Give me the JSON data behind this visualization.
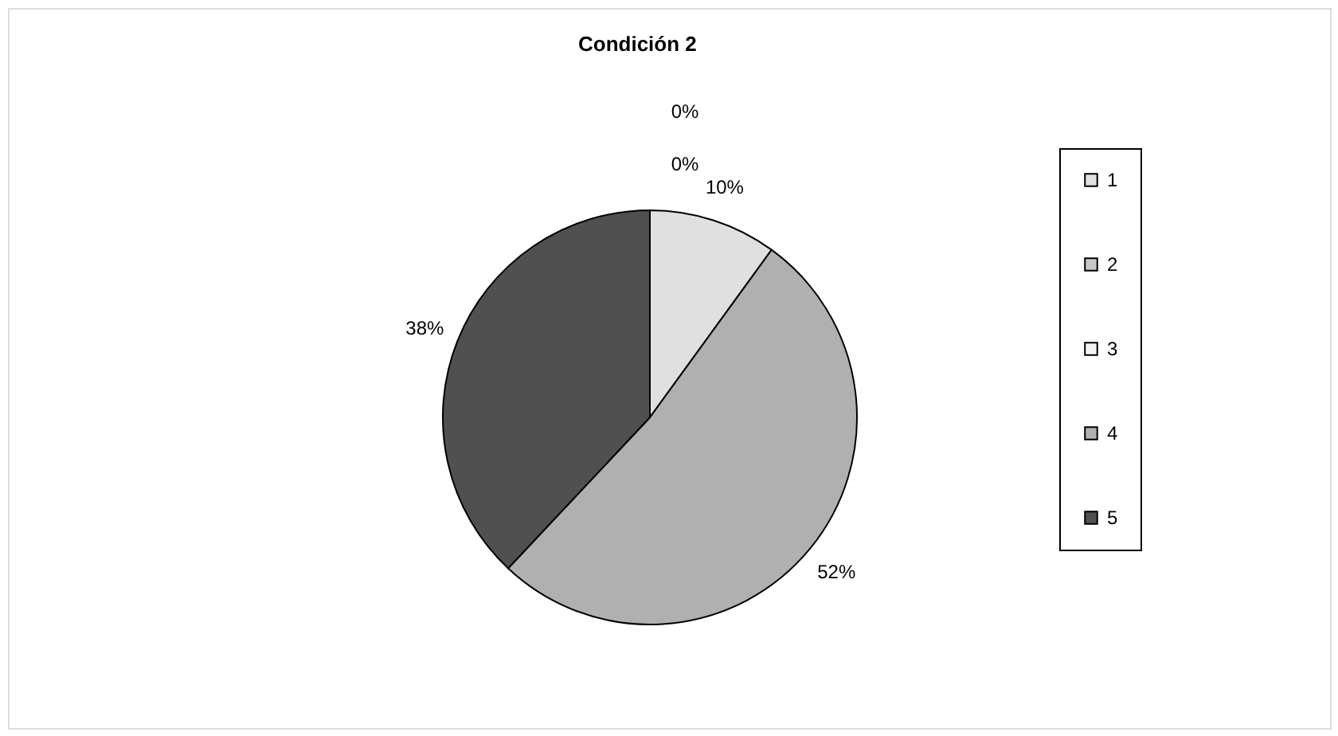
{
  "chart_data": {
    "type": "pie",
    "title": "Condición 2",
    "categories": [
      "1",
      "2",
      "3",
      "4",
      "5"
    ],
    "values": [
      10,
      0,
      0,
      52,
      38
    ],
    "value_labels": [
      "10%",
      "0%",
      "0%",
      "52%",
      "38%"
    ],
    "colors": [
      "#e0e0e0",
      "#c8c8c8",
      "#f4f4f4",
      "#b0b0b0",
      "#505050"
    ],
    "legend": "right"
  }
}
